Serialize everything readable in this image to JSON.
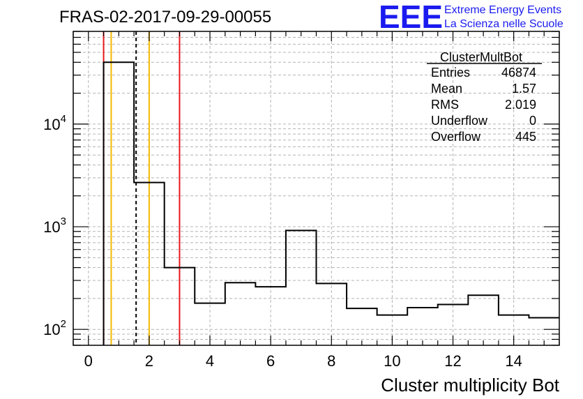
{
  "chart_data": {
    "type": "bar",
    "title": "FRAS-02-2017-09-29-00055",
    "xlabel": "Cluster multiplicity Bot",
    "ylabel": "",
    "xlim": [
      -0.5,
      15.5
    ],
    "ylim": [
      70,
      80000
    ],
    "log_y": true,
    "grid": true,
    "bin_edges": [
      0.5,
      1.5,
      2.5,
      3.5,
      4.5,
      5.5,
      6.5,
      7.5,
      8.5,
      9.5,
      10.5,
      11.5,
      12.5,
      13.5,
      14.5,
      15.5
    ],
    "values": [
      40000,
      2700,
      400,
      180,
      285,
      260,
      920,
      280,
      160,
      138,
      163,
      175,
      215,
      138,
      130
    ],
    "x_ticks": [
      0,
      2,
      4,
      6,
      8,
      10,
      12,
      14
    ],
    "x_tick_labels": [
      "0",
      "2",
      "4",
      "6",
      "8",
      "10",
      "12",
      "14"
    ],
    "y_ticks": [
      100,
      1000,
      10000
    ],
    "y_tick_labels": [
      {
        "base": "10",
        "exp": "2"
      },
      {
        "base": "10",
        "exp": "3"
      },
      {
        "base": "10",
        "exp": "4"
      }
    ],
    "vertical_lines": [
      {
        "x": 0.5,
        "color": "#e8161c",
        "style": "solid"
      },
      {
        "x": 0.75,
        "color": "#f5b800",
        "style": "solid"
      },
      {
        "x": 1.57,
        "color": "#000000",
        "style": "dashed"
      },
      {
        "x": 2.0,
        "color": "#f5b800",
        "style": "solid"
      },
      {
        "x": 3.0,
        "color": "#e8161c",
        "style": "solid"
      }
    ],
    "stats_box": {
      "name": "ClusterMultBot",
      "rows": [
        {
          "label": "Entries",
          "value": "46874"
        },
        {
          "label": "Mean",
          "value": "1.57"
        },
        {
          "label": "RMS",
          "value": "2.019"
        },
        {
          "label": "Underflow",
          "value": "0"
        },
        {
          "label": "Overflow",
          "value": "445"
        }
      ]
    }
  },
  "logo": {
    "text": "EEE",
    "line1": "Extreme Energy Events",
    "line2": "La Scienza nelle Scuole",
    "color": "#1b1bf0"
  }
}
